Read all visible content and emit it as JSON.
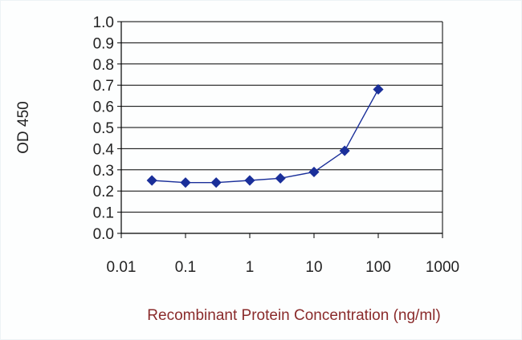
{
  "chart_data": {
    "type": "line",
    "title": "",
    "xlabel": "Recombinant Protein Concentration (ng/ml)",
    "ylabel": "OD 450",
    "x_scale": "log",
    "xlim": [
      0.01,
      1000
    ],
    "ylim": [
      0.0,
      1.0
    ],
    "x_ticks": [
      "0.01",
      "0.1",
      "1",
      "10",
      "100",
      "1000"
    ],
    "y_ticks": [
      "0.0",
      "0.1",
      "0.2",
      "0.3",
      "0.4",
      "0.5",
      "0.6",
      "0.7",
      "0.8",
      "0.9",
      "1.0"
    ],
    "grid": "horizontal",
    "legend": "none",
    "series": [
      {
        "x": [
          0.03,
          0.1,
          0.3,
          1,
          3,
          10,
          30,
          100
        ],
        "y": [
          0.25,
          0.24,
          0.24,
          0.25,
          0.26,
          0.29,
          0.39,
          0.68
        ],
        "color": "#1a2f9a",
        "marker": "diamond"
      }
    ],
    "colors": {
      "line": "#1a2f9a",
      "axis_label": "#8a2b2b",
      "grid": "#000000"
    }
  }
}
